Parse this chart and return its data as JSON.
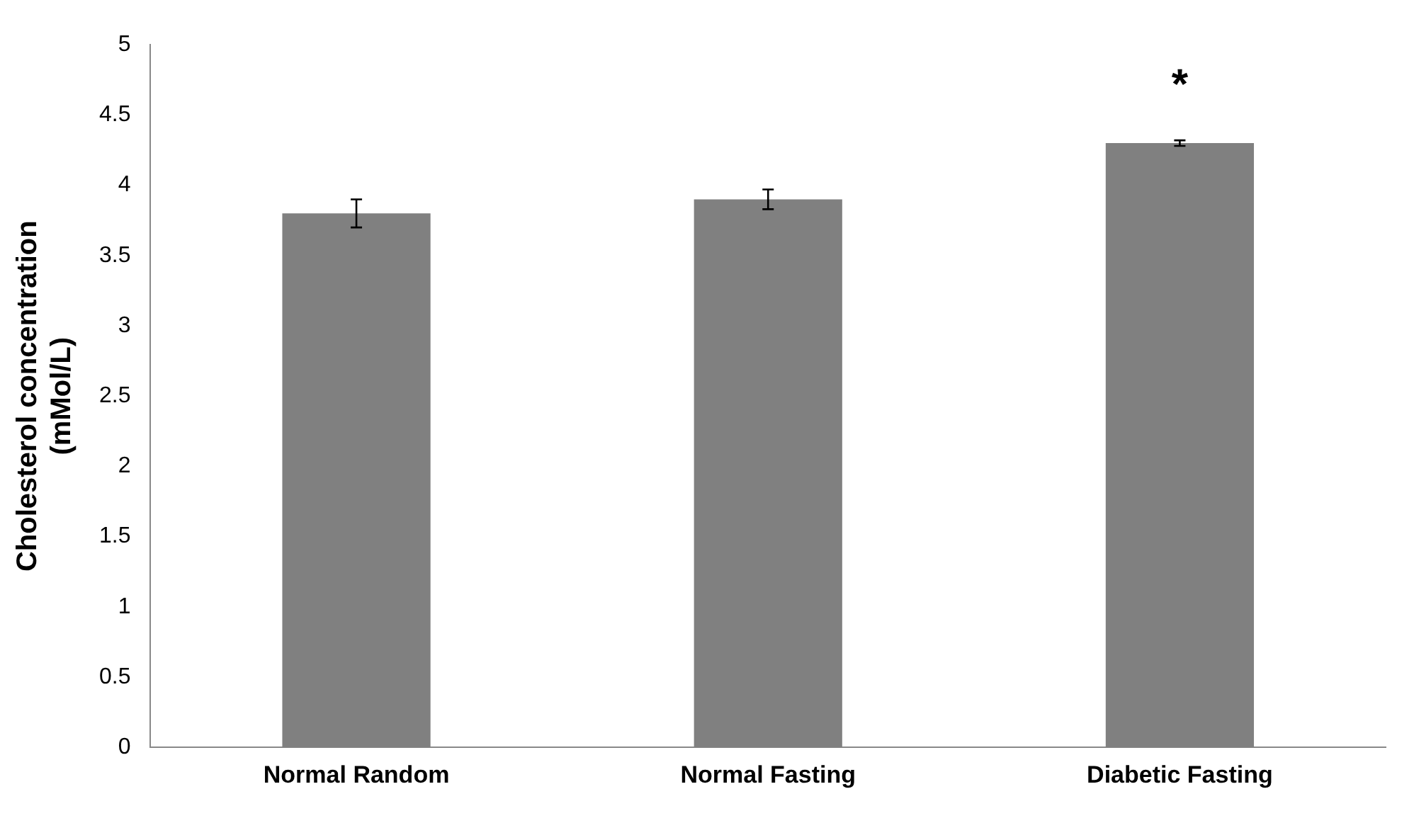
{
  "chart_data": {
    "type": "bar",
    "ylabel": "Cholesterol concentration\n(mMol/L)",
    "categories": [
      "Normal Random",
      "Normal Fasting",
      "Diabetic Fasting"
    ],
    "values": [
      3.8,
      3.9,
      4.3
    ],
    "color": "#808080",
    "errors": [
      0.1,
      0.07,
      0.02
    ],
    "ylim": [
      0,
      5
    ],
    "yticks": [
      0,
      0.5,
      1,
      1.5,
      2,
      2.5,
      3,
      3.5,
      4,
      4.5,
      5
    ],
    "grid": false,
    "legend": false,
    "annotations": [
      "*"
    ]
  }
}
